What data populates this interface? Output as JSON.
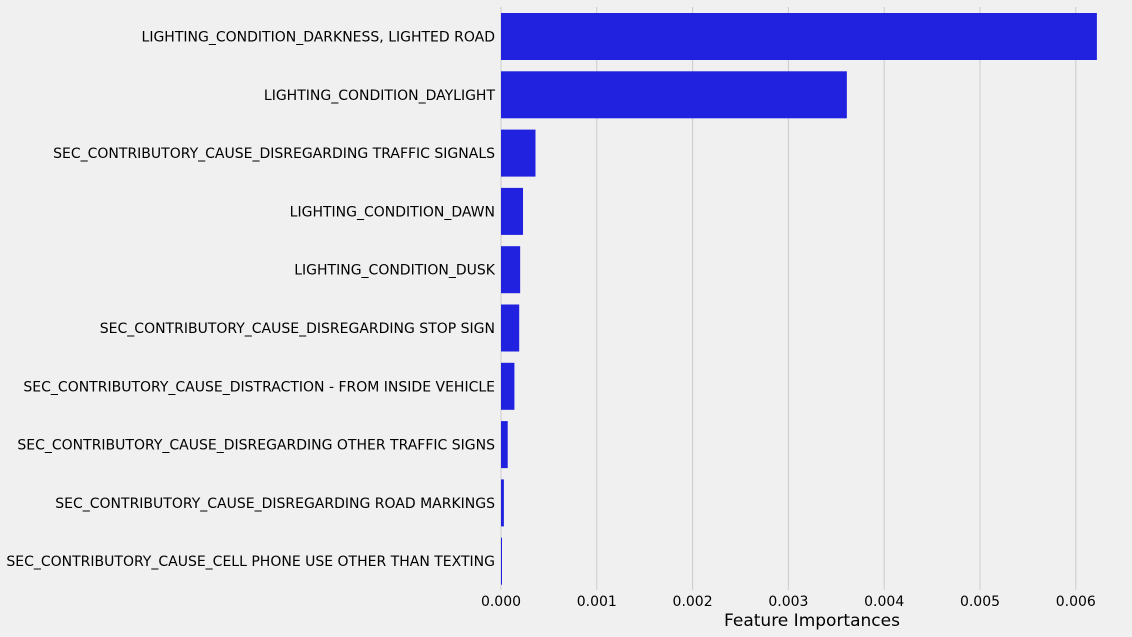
{
  "chart_data": {
    "type": "bar",
    "orientation": "horizontal",
    "categories": [
      "LIGHTING_CONDITION_DARKNESS, LIGHTED ROAD",
      "LIGHTING_CONDITION_DAYLIGHT",
      "SEC_CONTRIBUTORY_CAUSE_DISREGARDING TRAFFIC SIGNALS",
      "LIGHTING_CONDITION_DAWN",
      "LIGHTING_CONDITION_DUSK",
      "SEC_CONTRIBUTORY_CAUSE_DISREGARDING STOP SIGN",
      "SEC_CONTRIBUTORY_CAUSE_DISTRACTION - FROM INSIDE VEHICLE",
      "SEC_CONTRIBUTORY_CAUSE_DISREGARDING OTHER TRAFFIC SIGNS",
      "SEC_CONTRIBUTORY_CAUSE_DISREGARDING ROAD MARKINGS",
      "SEC_CONTRIBUTORY_CAUSE_CELL PHONE USE OTHER THAN TEXTING"
    ],
    "values": [
      0.00622,
      0.00361,
      0.00036,
      0.00023,
      0.0002,
      0.00019,
      0.00014,
      7e-05,
      3e-05,
      1e-05
    ],
    "xlabel": "Feature Importances",
    "ylabel": "",
    "title": "",
    "xlim": [
      0,
      0.0063
    ],
    "xticks": [
      "0.000",
      "0.001",
      "0.002",
      "0.003",
      "0.004",
      "0.005",
      "0.006"
    ],
    "grid": "vertical",
    "bar_color": "#2121e0"
  }
}
